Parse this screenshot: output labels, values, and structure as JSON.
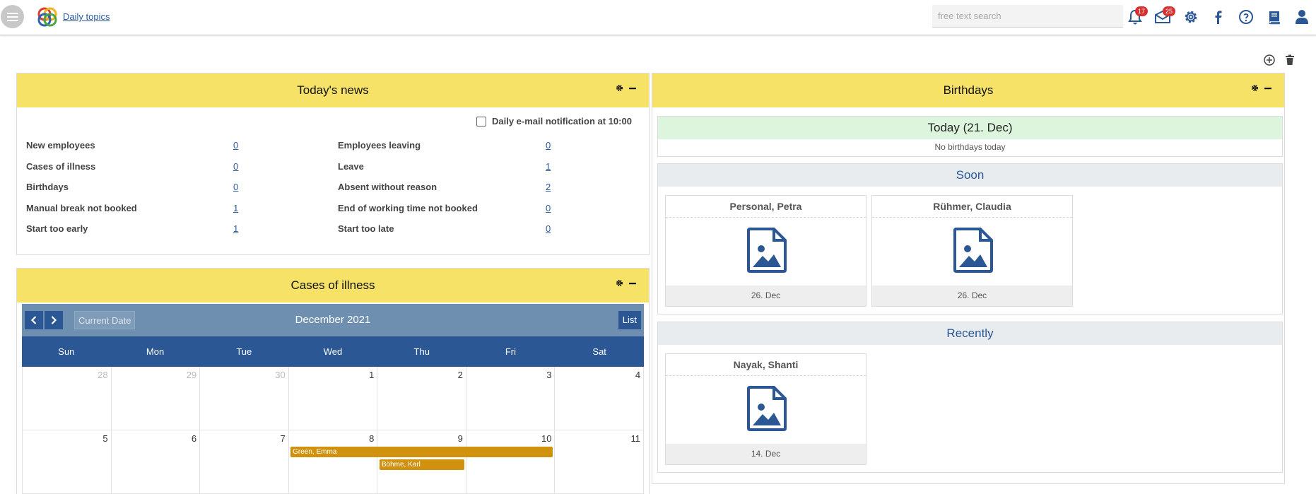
{
  "header": {
    "brand_link": "Daily topics",
    "search": {
      "placeholder": "free text search",
      "value": ""
    },
    "notifications_badge": "17",
    "messages_badge": "25"
  },
  "news": {
    "title": "Today's news",
    "notification_label": "Daily e-mail notification at 10:00",
    "notification_checked": false,
    "left_items": [
      {
        "label": "New employees",
        "value": "0"
      },
      {
        "label": "Cases of illness",
        "value": "0"
      },
      {
        "label": "Birthdays",
        "value": "0"
      },
      {
        "label": "Manual break not booked",
        "value": "1"
      },
      {
        "label": "Start too early",
        "value": "1"
      }
    ],
    "right_items": [
      {
        "label": "Employees leaving",
        "value": "0"
      },
      {
        "label": "Leave",
        "value": "1"
      },
      {
        "label": "Absent without reason",
        "value": "2"
      },
      {
        "label": "End of working time not booked",
        "value": "0"
      },
      {
        "label": "Start too late",
        "value": "0"
      }
    ]
  },
  "illness": {
    "title": "Cases of illness",
    "calendar": {
      "current_date_label": "Current Date",
      "month_title": "December 2021",
      "list_label": "List",
      "day_names": [
        "Sun",
        "Mon",
        "Tue",
        "Wed",
        "Thu",
        "Fri",
        "Sat"
      ],
      "weeks": [
        [
          {
            "d": "28",
            "other": true
          },
          {
            "d": "29",
            "other": true
          },
          {
            "d": "30",
            "other": true
          },
          {
            "d": "1"
          },
          {
            "d": "2"
          },
          {
            "d": "3"
          },
          {
            "d": "4"
          }
        ],
        [
          {
            "d": "5"
          },
          {
            "d": "6"
          },
          {
            "d": "7"
          },
          {
            "d": "8"
          },
          {
            "d": "9"
          },
          {
            "d": "10"
          },
          {
            "d": "11"
          }
        ]
      ],
      "events": [
        {
          "name": "Green, Emma",
          "week": 1,
          "start_col": 3,
          "span": 3,
          "lane": 0
        },
        {
          "name": "Böhme, Karl",
          "week": 1,
          "start_col": 4,
          "span": 1,
          "lane": 1
        }
      ]
    }
  },
  "birthdays": {
    "title": "Birthdays",
    "today": {
      "title": "Today (21. Dec)",
      "empty_text": "No birthdays today"
    },
    "soon": {
      "title": "Soon",
      "people": [
        {
          "name": "Personal, Petra",
          "date": "26. Dec"
        },
        {
          "name": "Rühmer, Claudia",
          "date": "26. Dec"
        }
      ]
    },
    "recently": {
      "title": "Recently",
      "people": [
        {
          "name": "Nayak, Shanti",
          "date": "14. Dec"
        }
      ]
    }
  },
  "colors": {
    "panel_header": "#f5e266",
    "calendar_dark": "#2b5795",
    "calendar_toolbar": "#6e8fb0",
    "event": "#d0910f",
    "today_bg": "#dcf5dc",
    "badge": "#d9302f",
    "link": "#2a5aa0"
  }
}
